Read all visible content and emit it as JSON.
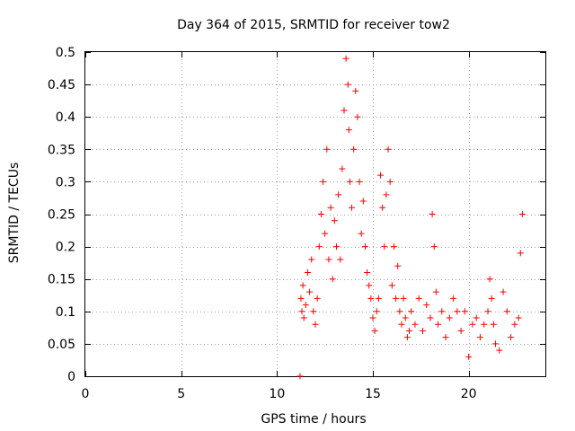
{
  "chart_data": {
    "type": "scatter",
    "title": "Day 364 of 2015, SRMTID for receiver tow2",
    "xlabel": "GPS time / hours",
    "ylabel": "SRMTID / TECUs",
    "xlim": [
      0,
      24
    ],
    "ylim": [
      0,
      0.5
    ],
    "xticks": [
      0,
      5,
      10,
      15,
      20
    ],
    "yticks": [
      0,
      0.05,
      0.1,
      0.15,
      0.2,
      0.25,
      0.3,
      0.35,
      0.4,
      0.45,
      0.5
    ],
    "xtick_labels": [
      "0",
      "5",
      "10",
      "15",
      "20"
    ],
    "ytick_labels": [
      "0",
      "0.05",
      "0.1",
      "0.15",
      "0.2",
      "0.25",
      "0.3",
      "0.35",
      "0.4",
      "0.45",
      "0.5"
    ],
    "grid": true,
    "marker": "+",
    "color": "#ff0000",
    "series": [
      {
        "name": "SRMTID",
        "x": [
          11.2,
          11.25,
          11.3,
          11.35,
          11.4,
          11.5,
          11.6,
          11.7,
          11.8,
          11.9,
          12.0,
          12.1,
          12.2,
          12.3,
          12.4,
          12.5,
          12.6,
          12.7,
          12.8,
          12.9,
          13.0,
          13.1,
          13.2,
          13.3,
          13.4,
          13.5,
          13.6,
          13.7,
          13.75,
          13.8,
          13.9,
          14.0,
          14.1,
          14.2,
          14.3,
          14.4,
          14.5,
          14.6,
          14.7,
          14.8,
          14.9,
          15.0,
          15.1,
          15.2,
          15.3,
          15.4,
          15.5,
          15.6,
          15.7,
          15.8,
          15.9,
          16.0,
          16.1,
          16.2,
          16.3,
          16.4,
          16.5,
          16.6,
          16.7,
          16.8,
          16.9,
          17.0,
          17.2,
          17.4,
          17.6,
          17.8,
          18.0,
          18.1,
          18.2,
          18.3,
          18.4,
          18.6,
          18.8,
          19.0,
          19.2,
          19.4,
          19.6,
          19.8,
          20.0,
          20.2,
          20.4,
          20.6,
          20.8,
          21.0,
          21.1,
          21.2,
          21.3,
          21.4,
          21.6,
          21.8,
          22.0,
          22.2,
          22.4,
          22.6,
          22.7,
          22.8
        ],
        "y": [
          0.0,
          0.12,
          0.1,
          0.14,
          0.09,
          0.11,
          0.16,
          0.13,
          0.18,
          0.1,
          0.08,
          0.12,
          0.2,
          0.25,
          0.3,
          0.22,
          0.35,
          0.18,
          0.26,
          0.15,
          0.24,
          0.2,
          0.28,
          0.18,
          0.32,
          0.41,
          0.49,
          0.45,
          0.38,
          0.3,
          0.26,
          0.35,
          0.44,
          0.4,
          0.3,
          0.22,
          0.27,
          0.2,
          0.16,
          0.14,
          0.12,
          0.09,
          0.07,
          0.1,
          0.12,
          0.31,
          0.26,
          0.2,
          0.28,
          0.35,
          0.3,
          0.14,
          0.2,
          0.12,
          0.17,
          0.1,
          0.08,
          0.12,
          0.09,
          0.06,
          0.07,
          0.1,
          0.08,
          0.12,
          0.07,
          0.11,
          0.09,
          0.25,
          0.2,
          0.13,
          0.08,
          0.1,
          0.06,
          0.09,
          0.12,
          0.1,
          0.07,
          0.1,
          0.03,
          0.08,
          0.09,
          0.06,
          0.08,
          0.1,
          0.15,
          0.12,
          0.08,
          0.05,
          0.04,
          0.13,
          0.1,
          0.06,
          0.08,
          0.09,
          0.19,
          0.25
        ]
      }
    ]
  }
}
